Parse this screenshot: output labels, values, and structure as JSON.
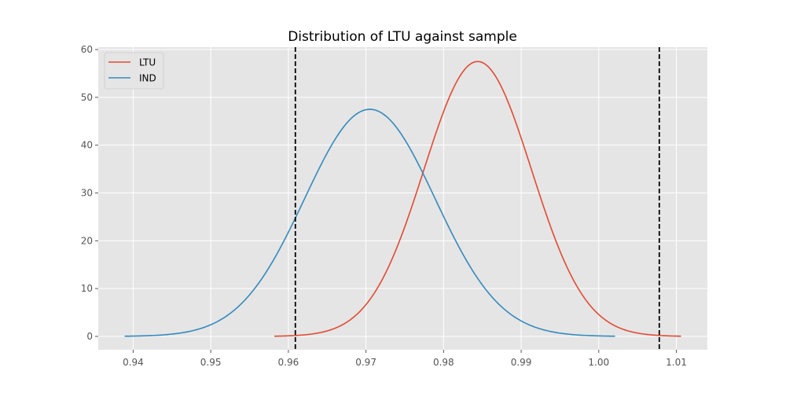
{
  "chart_data": {
    "type": "line",
    "title": "Distribution of LTU against sample",
    "xlabel": "",
    "ylabel": "",
    "xlim": [
      0.9355,
      1.014
    ],
    "ylim": [
      -2.8,
      60.5
    ],
    "x_ticks": [
      0.94,
      0.95,
      0.96,
      0.97,
      0.98,
      0.99,
      1.0,
      1.01
    ],
    "x_tick_labels": [
      "0.94",
      "0.95",
      "0.96",
      "0.97",
      "0.98",
      "0.99",
      "1.00",
      "1.01"
    ],
    "y_ticks": [
      0,
      10,
      20,
      30,
      40,
      50,
      60
    ],
    "y_tick_labels": [
      "0",
      "10",
      "20",
      "30",
      "40",
      "50",
      "60"
    ],
    "grid": true,
    "legend": "top-left",
    "series": [
      {
        "name": "LTU",
        "color": "#E24A33",
        "mean": 0.9844,
        "sd": 0.00693,
        "x_range": [
          0.9582,
          1.0106
        ],
        "peak_y": 57.5
      },
      {
        "name": "IND",
        "color": "#348ABD",
        "mean": 0.9705,
        "sd": 0.00841,
        "x_range": [
          0.9389,
          1.0021
        ],
        "peak_y": 47.5
      }
    ],
    "vlines": [
      {
        "x": 0.9609,
        "style": "dashed",
        "color": "#000000"
      },
      {
        "x": 1.0078,
        "style": "dashed",
        "color": "#000000"
      }
    ]
  }
}
